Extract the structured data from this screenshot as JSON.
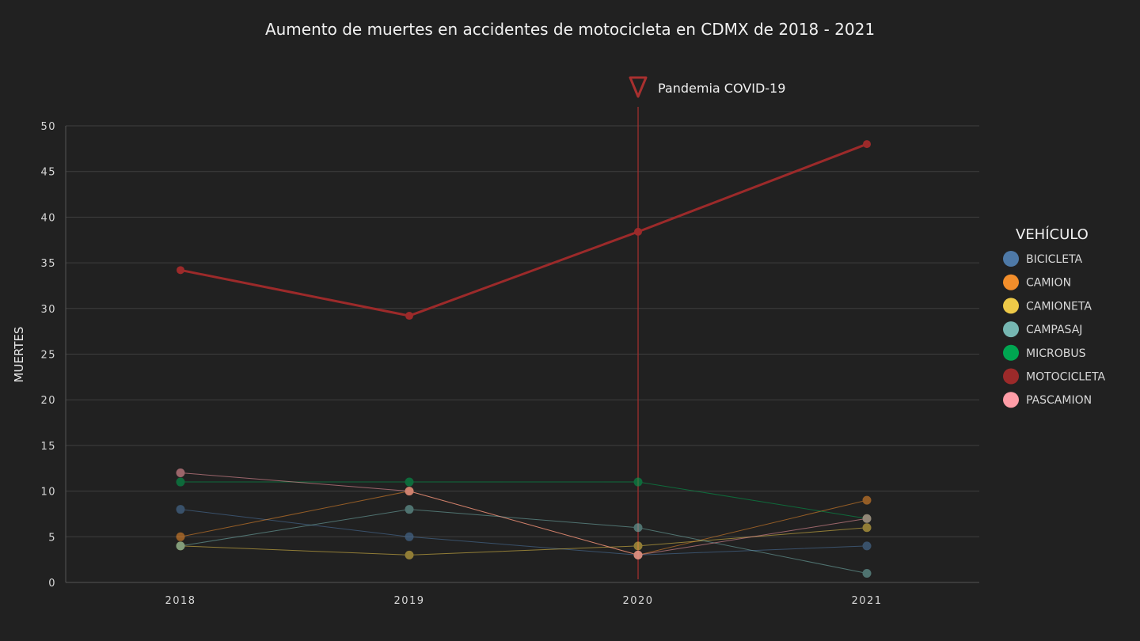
{
  "chart_data": {
    "type": "line",
    "title": "Aumento de muertes en accidentes de motocicleta en CDMX de 2018 - 2021",
    "ylabel": "MUERTES",
    "xlabel": "",
    "x": [
      "2018",
      "2019",
      "2020",
      "2021"
    ],
    "ylim": [
      0,
      50
    ],
    "yticks": [
      0,
      5,
      10,
      15,
      20,
      25,
      30,
      35,
      40,
      45,
      50
    ],
    "grid": true,
    "legend": {
      "title": "VEHÍCULO",
      "placement": "right"
    },
    "annotation": {
      "label": "Pandemia COVID-19",
      "x": "2020",
      "color": "#a8302f"
    },
    "series": [
      {
        "name": "BICICLETA",
        "color": "#4e79a7",
        "values": [
          8,
          5,
          3,
          4
        ]
      },
      {
        "name": "CAMION",
        "color": "#f28e2b",
        "values": [
          5,
          10,
          3,
          9
        ]
      },
      {
        "name": "CAMIONETA",
        "color": "#edc948",
        "values": [
          4,
          3,
          4,
          6
        ]
      },
      {
        "name": "CAMPASAJ",
        "color": "#76b7b2",
        "values": [
          4,
          8,
          6,
          1
        ]
      },
      {
        "name": "MICROBUS",
        "color": "#00a651",
        "values": [
          11,
          11,
          11,
          7
        ]
      },
      {
        "name": "MOTOCICLETA",
        "color": "#9c2a2a",
        "values": [
          34.2,
          29.2,
          38.4,
          48
        ]
      },
      {
        "name": "PASCAMION",
        "color": "#ff9da7",
        "values": [
          12,
          10,
          3,
          7
        ]
      }
    ]
  }
}
